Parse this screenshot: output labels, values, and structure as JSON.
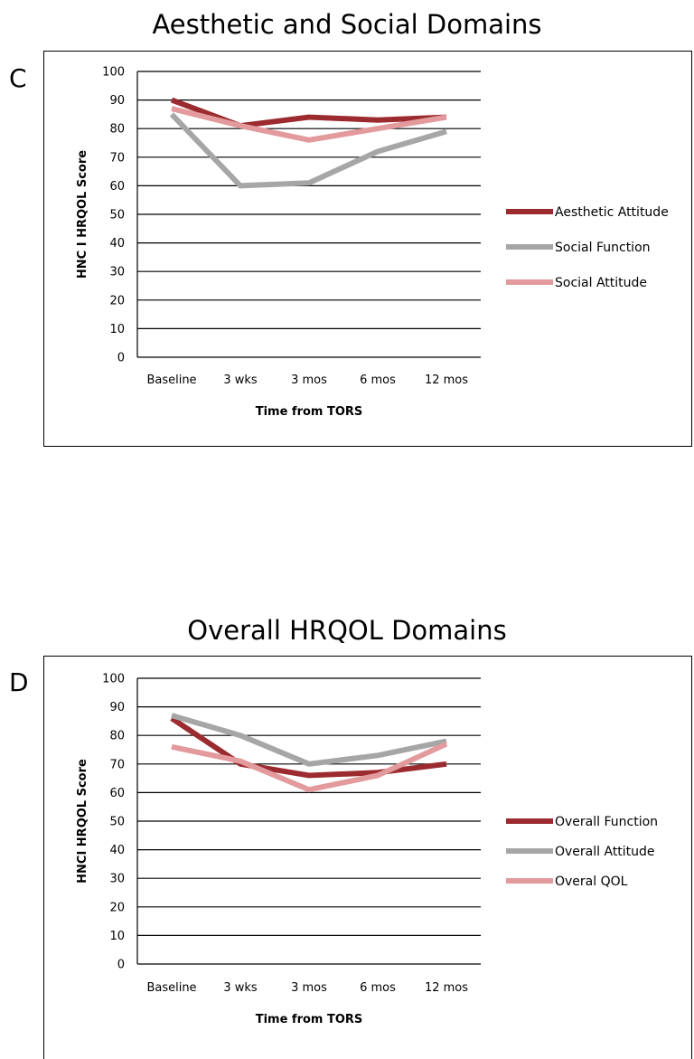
{
  "chart_data": [
    {
      "type": "line",
      "panel": "C",
      "title": "Aesthetic and Social Domains",
      "xlabel": "Time from TORS",
      "ylabel": "HNC I HRQOL Score",
      "ylim": [
        0,
        100
      ],
      "yticks": [
        0,
        10,
        20,
        30,
        40,
        50,
        60,
        70,
        80,
        90,
        100
      ],
      "categories": [
        "Baseline",
        "3 wks",
        "3 mos",
        "6 mos",
        "12 mos"
      ],
      "grid": true,
      "legend": "right",
      "series": [
        {
          "name": "Aesthetic Attitude",
          "color": "#9b2b2f",
          "values": [
            90,
            81,
            84,
            83,
            84
          ]
        },
        {
          "name": "Social Function",
          "color": "#a6a6a6",
          "values": [
            85,
            60,
            61,
            72,
            79
          ]
        },
        {
          "name": "Social Attitude",
          "color": "#e39a9c",
          "values": [
            87,
            81,
            76,
            80,
            84
          ]
        }
      ]
    },
    {
      "type": "line",
      "panel": "D",
      "title": "Overall HRQOL Domains",
      "xlabel": "Time from TORS",
      "ylabel": "HNCI HRQOL Score",
      "ylim": [
        0,
        100
      ],
      "yticks": [
        0,
        10,
        20,
        30,
        40,
        50,
        60,
        70,
        80,
        90,
        100
      ],
      "categories": [
        "Baseline",
        "3 wks",
        "3 mos",
        "6 mos",
        "12 mos"
      ],
      "grid": true,
      "legend": "right",
      "series": [
        {
          "name": "Overall Function",
          "color": "#9b2b2f",
          "values": [
            86,
            70,
            66,
            67,
            70
          ]
        },
        {
          "name": "Overall Attitude",
          "color": "#a6a6a6",
          "values": [
            87,
            80,
            70,
            73,
            78
          ]
        },
        {
          "name": "Overal QOL",
          "color": "#e39a9c",
          "values": [
            76,
            71,
            61,
            66,
            77
          ]
        }
      ]
    }
  ]
}
